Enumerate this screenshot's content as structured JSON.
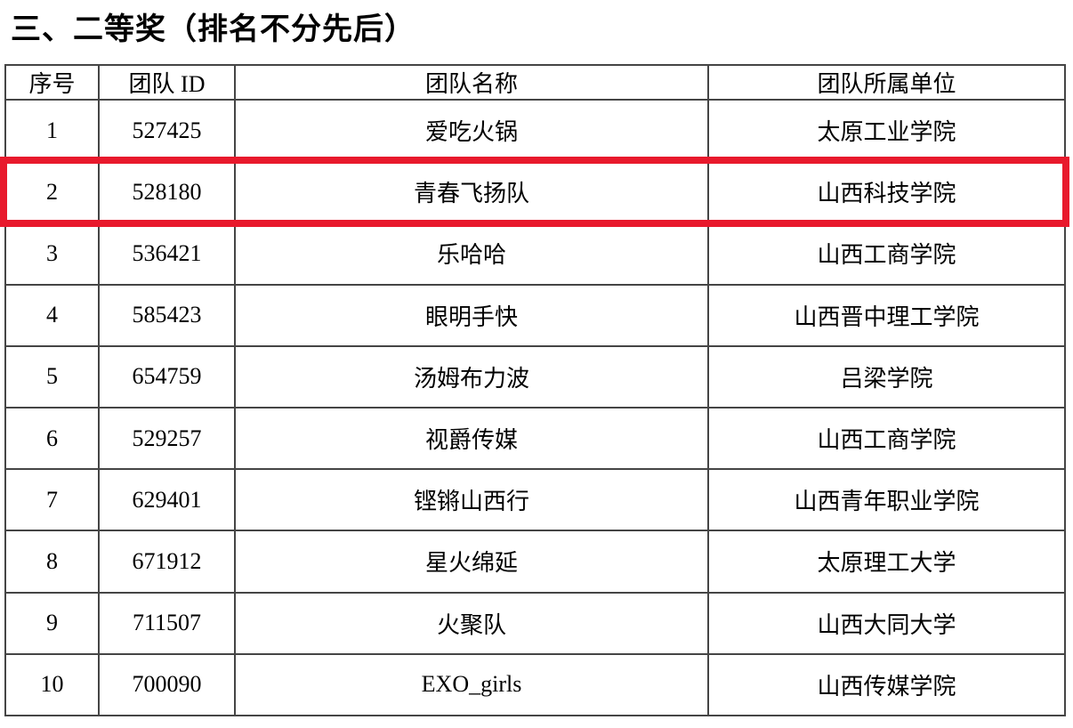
{
  "page": {
    "title": "三、二等奖（排名不分先后）"
  },
  "table": {
    "columns": [
      "序号",
      "团队 ID",
      "团队名称",
      "团队所属单位"
    ],
    "rows": [
      {
        "no": "1",
        "id": "527425",
        "name": "爱吃火锅",
        "org": "太原工业学院",
        "highlighted": false
      },
      {
        "no": "2",
        "id": "528180",
        "name": "青春飞扬队",
        "org": "山西科技学院",
        "highlighted": true
      },
      {
        "no": "3",
        "id": "536421",
        "name": "乐哈哈",
        "org": "山西工商学院",
        "highlighted": false
      },
      {
        "no": "4",
        "id": "585423",
        "name": "眼明手快",
        "org": "山西晋中理工学院",
        "highlighted": false
      },
      {
        "no": "5",
        "id": "654759",
        "name": "汤姆布力波",
        "org": "吕梁学院",
        "highlighted": false
      },
      {
        "no": "6",
        "id": "529257",
        "name": "视爵传媒",
        "org": "山西工商学院",
        "highlighted": false
      },
      {
        "no": "7",
        "id": "629401",
        "name": "铿锵山西行",
        "org": "山西青年职业学院",
        "highlighted": false
      },
      {
        "no": "8",
        "id": "671912",
        "name": "星火绵延",
        "org": "太原理工大学",
        "highlighted": false
      },
      {
        "no": "9",
        "id": "711507",
        "name": "火聚队",
        "org": "山西大同大学",
        "highlighted": false
      },
      {
        "no": "10",
        "id": "700090",
        "name": "EXO_girls",
        "org": "山西传媒学院",
        "highlighted": false
      }
    ]
  },
  "colors": {
    "highlight_border": "#e8192c",
    "table_border": "#454545",
    "text": "#000000",
    "background": "#ffffff"
  }
}
